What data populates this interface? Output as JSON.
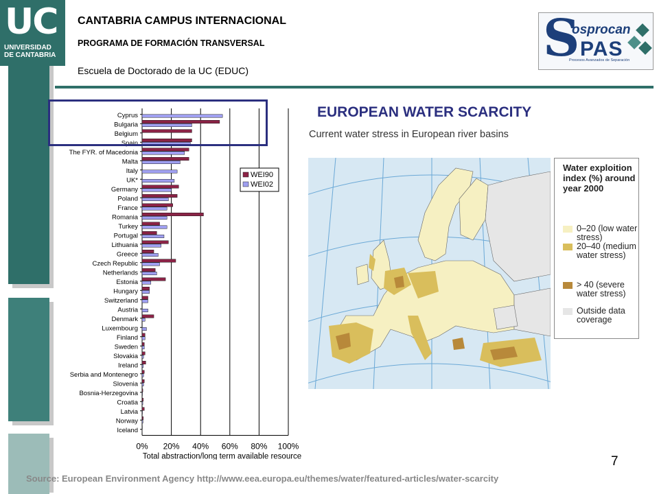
{
  "header": {
    "logo_letters": "UC",
    "logo_line1": "UNIVERSIDAD",
    "logo_line2": "DE CANTABRIA",
    "line1": "CANTABRIA CAMPUS INTERNACIONAL",
    "line2": "PROGRAMA DE FORMACIÓN  TRANSVERSAL",
    "line3": "Escuela de Doctorado de la UC (EDUC)",
    "sp_logo": {
      "s": "S",
      "line1": "osprocan",
      "line2": "PAS",
      "line3": "Procesos Avanzados de Separación"
    }
  },
  "title": "EUROPEAN WATER SCARCITY",
  "map": {
    "title": "Current water stress in European river basins",
    "legend_title": "Water exploition index (%) around year 2000",
    "legend": [
      {
        "label": "0–20 (low water stress)",
        "color": "#f6f0c2"
      },
      {
        "label": "20–40 (medium water stress)",
        "color": "#d9be5c"
      },
      {
        "label": "> 40 (severe water stress)",
        "color": "#b8893a"
      },
      {
        "label": "Outside data coverage",
        "color": "#e6e6e6"
      }
    ]
  },
  "chart_data": {
    "type": "bar",
    "orientation": "horizontal",
    "categories": [
      "Cyprus",
      "Bulgaria",
      "Belgium",
      "Spain",
      "The FYR. of Macedonia",
      "Malta",
      "Italy",
      "UK*",
      "Germany",
      "Poland",
      "France",
      "Romania",
      "Turkey",
      "Portugal",
      "Lithuania",
      "Greece",
      "Czech Republic",
      "Netherlands",
      "Estonia",
      "Hungary",
      "Switzerland",
      "Austria",
      "Denmark",
      "Luxembourg",
      "Finland",
      "Sweden",
      "Slovakia",
      "Ireland",
      "Serbia and Montenegro",
      "Slovenia",
      "Bosnia-Herzegovina",
      "Croatia",
      "Latvia",
      "Norway",
      "Iceland"
    ],
    "series": [
      {
        "name": "WEI90",
        "color": "#8b2346",
        "values": [
          0,
          53,
          34,
          34,
          32,
          32,
          0,
          0,
          25,
          24,
          21,
          42,
          12,
          10,
          18,
          8,
          23,
          9,
          16,
          5,
          4,
          0,
          8,
          0,
          2,
          1.5,
          2,
          2.5,
          1.5,
          1.5,
          0.5,
          0.8,
          1.5,
          0.8,
          0.2
        ]
      },
      {
        "name": "WEI02",
        "color": "#9f9ff0",
        "values": [
          55,
          34,
          0,
          33,
          29,
          26,
          24,
          22,
          20,
          18,
          17,
          17,
          17,
          15,
          13,
          11,
          12,
          10,
          6,
          5,
          4,
          4,
          2,
          3,
          2,
          1.5,
          1,
          0.8,
          1,
          1,
          0.3,
          0.5,
          0.3,
          0.6,
          0.1
        ]
      }
    ],
    "xlabel": "Total abstraction/long term available resource",
    "xticks": [
      "0%",
      "20%",
      "40%",
      "60%",
      "80%",
      "100%"
    ],
    "xlim": [
      0,
      100
    ],
    "grid": true,
    "legend_position": "right"
  },
  "page_number": "7",
  "source": "Source: European Environment Agency http://www.eea.europa.eu/themes/water/featured-articles/water-scarcity"
}
